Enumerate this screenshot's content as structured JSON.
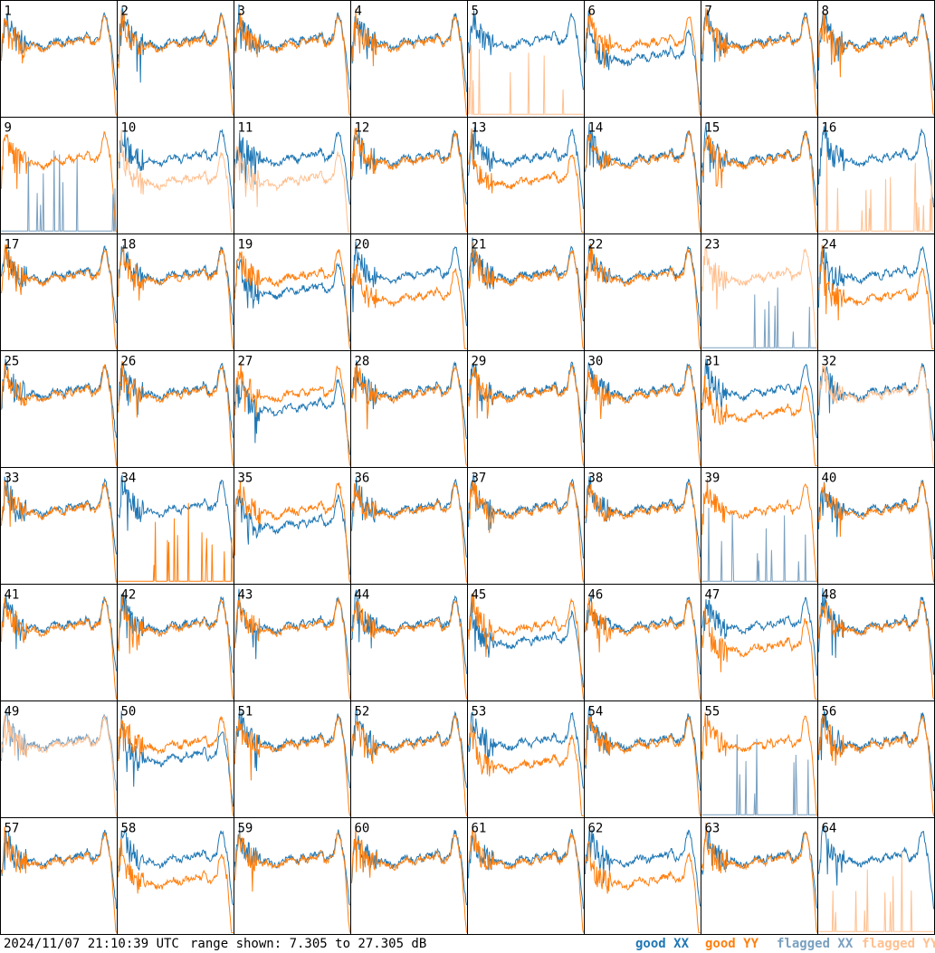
{
  "chart_data": {
    "type": "line",
    "panel_count": 64,
    "panel_labels": [
      "1",
      "2",
      "3",
      "4",
      "5",
      "6",
      "7",
      "8",
      "9",
      "10",
      "11",
      "12",
      "13",
      "14",
      "15",
      "16",
      "17",
      "18",
      "19",
      "20",
      "21",
      "22",
      "23",
      "24",
      "25",
      "26",
      "27",
      "28",
      "29",
      "30",
      "31",
      "32",
      "33",
      "34",
      "35",
      "36",
      "37",
      "38",
      "39",
      "40",
      "41",
      "42",
      "43",
      "44",
      "45",
      "46",
      "47",
      "48",
      "49",
      "50",
      "51",
      "52",
      "53",
      "54",
      "55",
      "56",
      "57",
      "58",
      "59",
      "60",
      "61",
      "62",
      "63",
      "64"
    ],
    "y_range_db": [
      7.305,
      27.305
    ],
    "series": [
      {
        "name": "good XX",
        "color": "#1f77b4"
      },
      {
        "name": "good YY",
        "color": "#ff7f0e"
      },
      {
        "name": "flagged XX",
        "color": "#7aa0c0"
      },
      {
        "name": "flagged YY",
        "color": "#ffc090"
      }
    ],
    "panel_status": {
      "xx_flagged": [
        "9",
        "39",
        "55"
      ],
      "yy_flagged": [
        "5",
        "10",
        "11",
        "16",
        "32",
        "64"
      ],
      "both_flagged": [
        "23",
        "49"
      ],
      "xx_dropout": [
        "9",
        "23",
        "39",
        "55"
      ],
      "yy_dropout": [
        "5",
        "16",
        "34",
        "64"
      ],
      "xx_low": [
        "6",
        "19",
        "27",
        "35",
        "45",
        "50"
      ],
      "yy_low": [
        "10",
        "11",
        "13",
        "20",
        "24",
        "31",
        "47",
        "53",
        "58",
        "62"
      ]
    }
  },
  "footer": {
    "timestamp": "2024/11/07 21:10:39 UTC",
    "range_text": "range shown: 7.305 to 27.305 dB",
    "legend": {
      "good_xx": "good XX",
      "good_yy": "good YY",
      "flagged_xx": "flagged XX",
      "flagged_yy": "flagged YY"
    },
    "colors": {
      "good_xx": "#1f77b4",
      "good_yy": "#ff7f0e",
      "flagged_xx": "#7aa0c0",
      "flagged_yy": "#ffc090"
    }
  }
}
